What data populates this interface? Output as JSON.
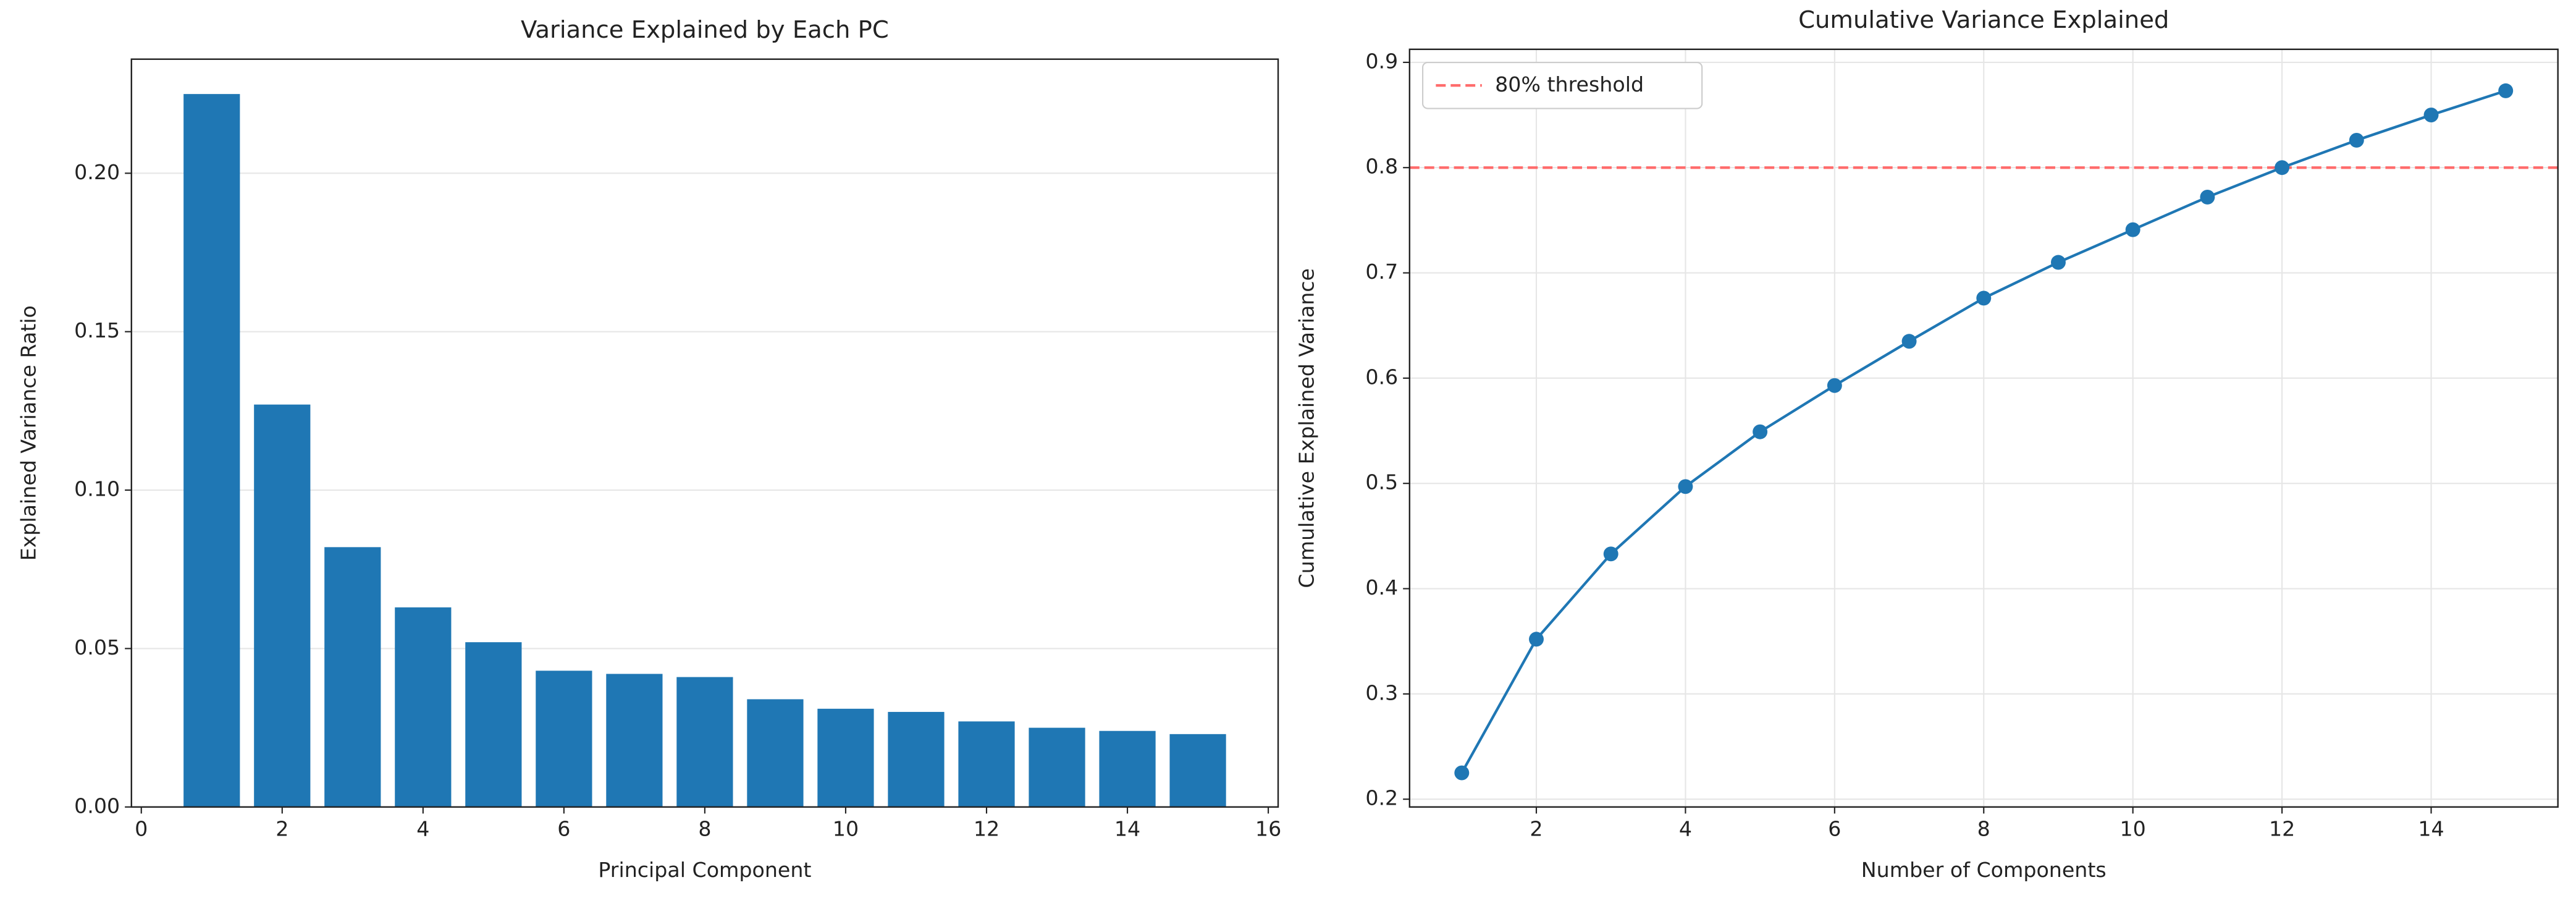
{
  "chart_data": [
    {
      "type": "bar",
      "title": "Variance Explained by Each PC",
      "xlabel": "Principal Component",
      "ylabel": "Explained Variance Ratio",
      "x": [
        1,
        2,
        3,
        4,
        5,
        6,
        7,
        8,
        9,
        10,
        11,
        12,
        13,
        14,
        15
      ],
      "values": [
        0.225,
        0.127,
        0.082,
        0.063,
        0.052,
        0.043,
        0.042,
        0.041,
        0.034,
        0.031,
        0.03,
        0.027,
        0.025,
        0.024,
        0.023
      ],
      "color": "#1f77b4",
      "xlim": [
        -0.14,
        16.14
      ],
      "ylim": [
        0,
        0.236
      ],
      "xticks": [
        0,
        2,
        4,
        6,
        8,
        10,
        12,
        14,
        16
      ],
      "yticks": [
        {
          "value": 0,
          "label": "0.00"
        },
        {
          "value": 0.05,
          "label": "0.05"
        },
        {
          "value": 0.1,
          "label": "0.10"
        },
        {
          "value": 0.15,
          "label": "0.15"
        },
        {
          "value": 0.2,
          "label": "0.20"
        }
      ],
      "grid": "y"
    },
    {
      "type": "line",
      "title": "Cumulative Variance Explained",
      "xlabel": "Number of Components",
      "ylabel": "Cumulative Explained Variance",
      "x": [
        1,
        2,
        3,
        4,
        5,
        6,
        7,
        8,
        9,
        10,
        11,
        12,
        13,
        14,
        15
      ],
      "values": [
        0.225,
        0.352,
        0.433,
        0.497,
        0.549,
        0.593,
        0.635,
        0.676,
        0.71,
        0.741,
        0.772,
        0.8,
        0.826,
        0.85,
        0.873
      ],
      "color": "#1f77b4",
      "hline": {
        "name": "80% threshold",
        "value": 0.8,
        "color": "#ff6b6b"
      },
      "legend": "upper left",
      "xlim": [
        0.3,
        15.7
      ],
      "ylim": [
        0.1926,
        0.9124
      ],
      "xticks": [
        2,
        4,
        6,
        8,
        10,
        12,
        14
      ],
      "yticks": [
        0.2,
        0.3,
        0.4,
        0.5,
        0.6,
        0.7,
        0.8,
        0.9
      ],
      "grid": "both"
    }
  ]
}
